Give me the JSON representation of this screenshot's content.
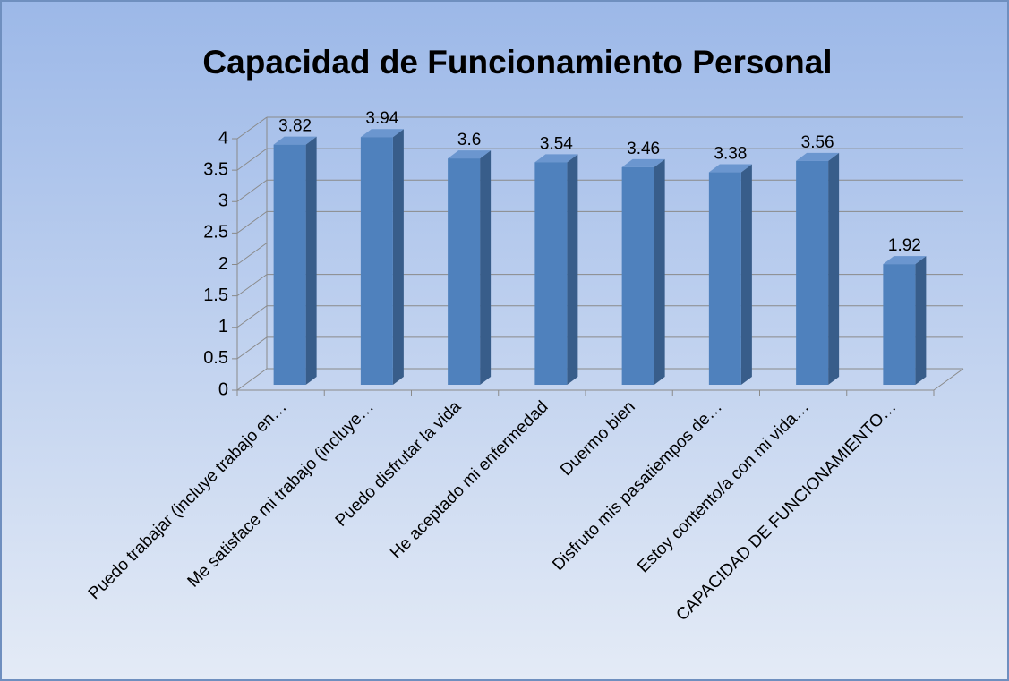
{
  "chart_data": {
    "type": "bar",
    "title": "Capacidad de Funcionamiento Personal",
    "categories": [
      "Puedo trabajar (incluye trabajo en…",
      "Me satisface mi trabajo (incluye…",
      "Puedo disfrutar la vida",
      "He aceptado mi enfermedad",
      "Duermo bien",
      "Disfruto mis pasatiempos de…",
      "Estoy contento/a con mi vida…",
      "CAPACIDAD DE FUNCIONAMIENTO…"
    ],
    "values": [
      3.82,
      3.94,
      3.6,
      3.54,
      3.46,
      3.38,
      3.56,
      1.92
    ],
    "color": "#4f81bd",
    "ylim": [
      0,
      4
    ],
    "yticks": [
      0,
      0.5,
      1,
      1.5,
      2,
      2.5,
      3,
      3.5,
      4
    ],
    "grid": true
  }
}
